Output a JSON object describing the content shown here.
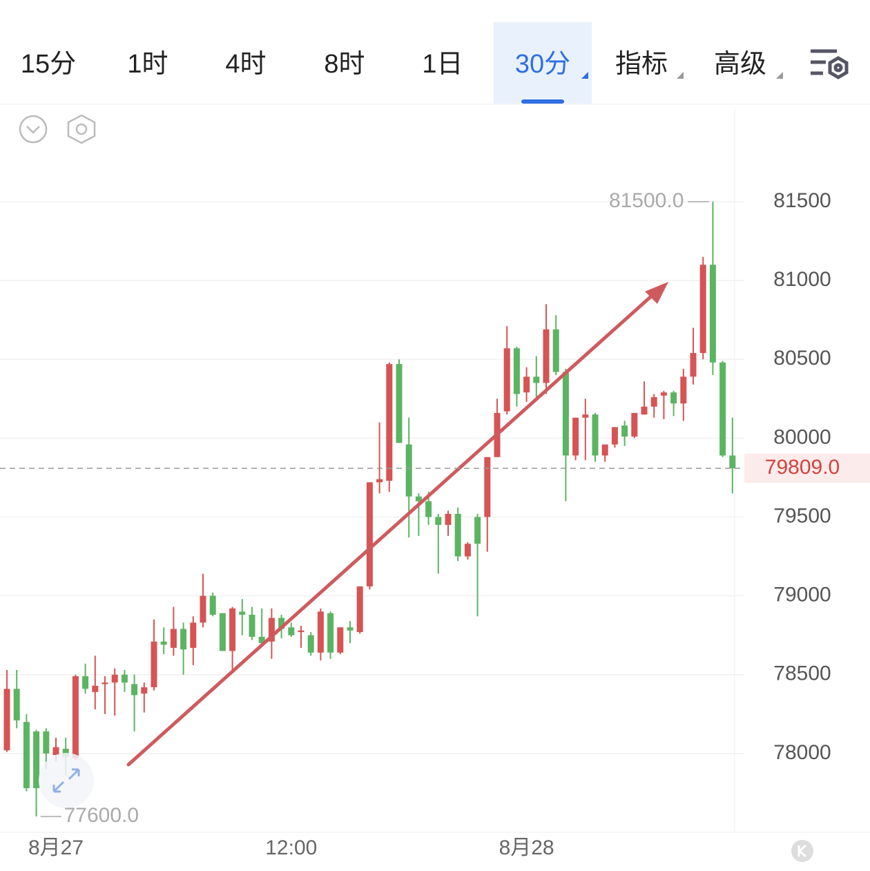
{
  "toolbar": {
    "tabs": [
      "15分",
      "1时",
      "4时",
      "8时",
      "1日",
      "30分",
      "指标",
      "高级"
    ],
    "active": 5
  },
  "chart_data": {
    "type": "candlestick",
    "categories": [
      null,
      null,
      null,
      null,
      null,
      "8月27",
      null,
      null,
      null,
      null,
      null,
      null,
      null,
      null,
      null,
      null,
      null,
      null,
      null,
      null,
      null,
      null,
      null,
      null,
      null,
      null,
      null,
      null,
      null,
      "12:00",
      null,
      null,
      null,
      null,
      null,
      null,
      null,
      null,
      null,
      null,
      null,
      null,
      null,
      null,
      null,
      null,
      null,
      null,
      null,
      null,
      null,
      null,
      null,
      "8月28",
      null,
      null,
      null,
      null,
      null,
      null,
      null,
      null,
      null,
      null,
      null,
      null,
      null,
      null,
      null,
      null,
      null,
      null,
      null,
      null,
      null
    ],
    "open": [
      78020,
      78410,
      78200,
      78140,
      78140,
      77990,
      78030,
      77970,
      78490,
      78390,
      78440,
      78450,
      78500,
      78440,
      78380,
      78420,
      78710,
      78670,
      78790,
      78670,
      78830,
      79000,
      78890,
      78650,
      78900,
      78880,
      78740,
      78710,
      78860,
      78800,
      78770,
      78750,
      78640,
      78890,
      78640,
      78800,
      78770,
      79060,
      79720,
      79730,
      80470,
      79960,
      79630,
      79600,
      79500,
      79450,
      79520,
      79250,
      79500,
      79500,
      79880,
      80170,
      80570,
      80290,
      80390,
      80350,
      80690,
      80420,
      79890,
      80130,
      80150,
      79890,
      79960,
      80080,
      80010,
      80150,
      80200,
      80270,
      80290,
      80220,
      80390,
      80540,
      81100,
      80480,
      79890
    ],
    "high": [
      78530,
      78530,
      78250,
      78150,
      78160,
      78100,
      78100,
      78500,
      78570,
      78620,
      78490,
      78540,
      78530,
      78500,
      78450,
      78850,
      78800,
      78930,
      78830,
      78870,
      79140,
      79020,
      78890,
      78930,
      78980,
      78930,
      78920,
      78920,
      78880,
      78830,
      78810,
      78770,
      78920,
      78900,
      78800,
      78840,
      79060,
      79720,
      80100,
      80480,
      80500,
      80130,
      79650,
      79660,
      79520,
      79540,
      79560,
      79340,
      79520,
      79880,
      80250,
      80710,
      80580,
      80450,
      80520,
      80850,
      80780,
      80440,
      80130,
      80250,
      80160,
      79960,
      80070,
      80110,
      80160,
      80360,
      80280,
      80300,
      80300,
      80440,
      80700,
      81150,
      81500,
      80490,
      80130
    ],
    "low": [
      78010,
      78160,
      77760,
      77600,
      77900,
      77950,
      77860,
      77960,
      78380,
      78280,
      78250,
      78240,
      78390,
      78140,
      78260,
      78400,
      78630,
      78620,
      78500,
      78560,
      78800,
      78870,
      78650,
      78530,
      78750,
      78720,
      78690,
      78600,
      78730,
      78740,
      78670,
      78620,
      78590,
      78600,
      78630,
      78700,
      78760,
      79040,
      79650,
      79660,
      79970,
      79370,
      79380,
      79450,
      79140,
      79380,
      79220,
      79230,
      78870,
      79280,
      79880,
      80150,
      80200,
      80230,
      80240,
      80280,
      80400,
      79600,
      79860,
      79860,
      79850,
      79850,
      79940,
      79950,
      80000,
      80150,
      80130,
      80120,
      80140,
      80110,
      80340,
      80500,
      80400,
      79880,
      79650
    ],
    "close": [
      78410,
      78210,
      77780,
      77780,
      78000,
      78040,
      77980,
      78490,
      78410,
      78430,
      78450,
      78500,
      78450,
      78370,
      78420,
      78710,
      78690,
      78790,
      78660,
      78830,
      79000,
      78880,
      78650,
      78920,
      78880,
      78740,
      78700,
      78860,
      78790,
      78750,
      78780,
      78640,
      78900,
      78640,
      78800,
      78780,
      79060,
      79720,
      79740,
      80470,
      79970,
      79630,
      79600,
      79500,
      79450,
      79520,
      79250,
      79330,
      79330,
      79880,
      80160,
      80570,
      80280,
      80390,
      80350,
      80690,
      80420,
      79890,
      80130,
      80150,
      79890,
      79960,
      80070,
      80010,
      80160,
      80200,
      80260,
      80290,
      80220,
      80390,
      80540,
      81100,
      80480,
      79890,
      79809
    ],
    "up_color": "#d65454",
    "down_color": "#5bb462",
    "ylim": [
      77500,
      82100
    ],
    "yticks": [
      78000,
      78500,
      79000,
      79500,
      80000,
      80500,
      81000,
      81500
    ],
    "grid": true,
    "high_marker": {
      "value": 81500,
      "label": "81500.0"
    },
    "low_marker": {
      "value": 77600,
      "label": "77600.0"
    },
    "last_price": {
      "value": 79809,
      "label": "79809.0"
    }
  }
}
